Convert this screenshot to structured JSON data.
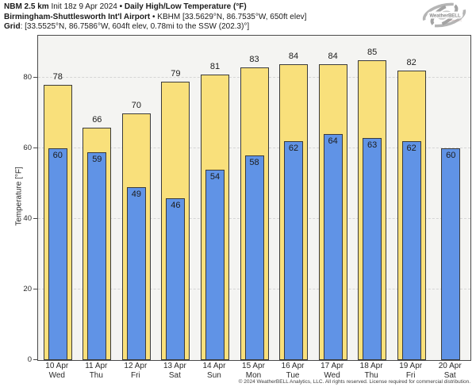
{
  "title": {
    "model": "NBM 2.5 km",
    "init": " Init 18z 9 Apr 2024 ",
    "sep1": "• ",
    "product": "Daily High/Low Temperature (°F)",
    "station": "Birmingham-Shuttlesworth Int'l Airport",
    "sep2": " • ",
    "station_info": "KBHM [33.5629°N, 86.7535°W, 650ft elev]",
    "grid_label": "Grid",
    "grid_info": ": [33.5525°N, 86.7586°W, 604ft elev, 0.78mi to the SSW (202.3)°]"
  },
  "logo": {
    "brand": "WeatherBELL",
    "sub": "Analytics LLC"
  },
  "chart_data": {
    "type": "bar",
    "categories": [
      "10 Apr",
      "11 Apr",
      "12 Apr",
      "13 Apr",
      "14 Apr",
      "15 Apr",
      "16 Apr",
      "17 Apr",
      "18 Apr",
      "19 Apr",
      "20 Apr"
    ],
    "weekdays": [
      "Wed",
      "Thu",
      "Fri",
      "Sat",
      "Sun",
      "Mon",
      "Tue",
      "Wed",
      "Thu",
      "Fri",
      "Sat"
    ],
    "series": [
      {
        "name": "High",
        "color": "#f9e07b",
        "values": [
          78,
          66,
          70,
          79,
          81,
          83,
          84,
          84,
          85,
          82,
          null
        ]
      },
      {
        "name": "Low",
        "color": "#6093e6",
        "values": [
          60,
          59,
          49,
          46,
          54,
          58,
          62,
          64,
          63,
          62,
          60
        ]
      }
    ],
    "ylabel": "Temperature [°F]",
    "ylim": [
      0,
      92
    ],
    "yticks": [
      0,
      20,
      40,
      60,
      80
    ],
    "grid": "horizontal-dashed",
    "bar_border_color": "#3b3b3b",
    "plot_bg": "#f4f4f2"
  },
  "footer": {
    "copyright": "© 2024 WeatherBELL Analytics, LLC. All rights reserved. License required for commercial distribution."
  }
}
